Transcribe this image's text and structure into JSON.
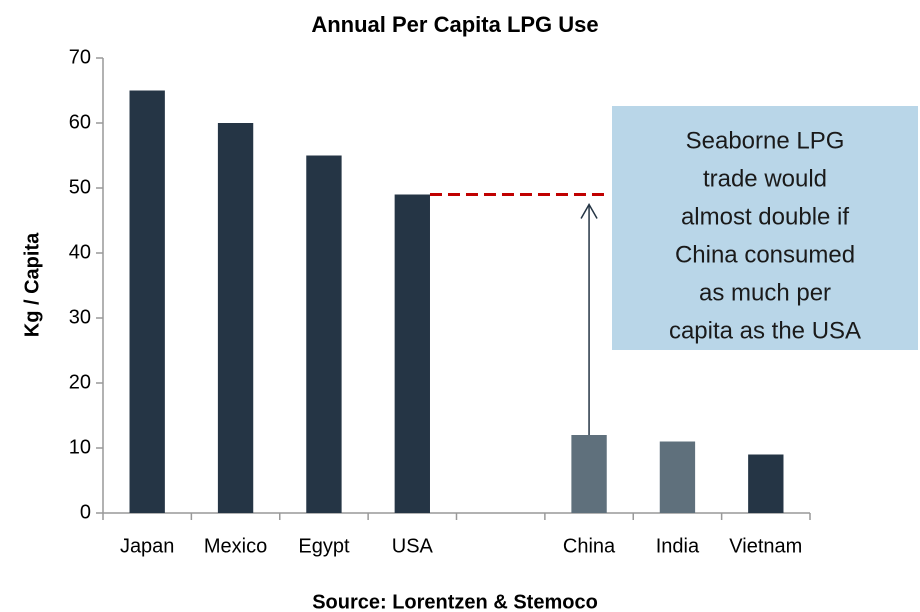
{
  "chart_data": {
    "type": "bar",
    "title": "Annual Per Capita LPG Use",
    "y_label": "Kg / Capita",
    "categories": [
      "Japan",
      "Mexico",
      "Egypt",
      "USA",
      null,
      "China",
      "India",
      "Vietnam"
    ],
    "values": [
      65,
      60,
      55,
      49,
      null,
      12,
      11,
      9
    ],
    "colors": [
      "#253545",
      "#253545",
      "#253545",
      "#253545",
      null,
      "#5f707c",
      "#5f707c",
      "#253545"
    ],
    "ylim": [
      0,
      70
    ],
    "yticks": [
      0,
      10,
      20,
      30,
      40,
      50,
      60,
      70
    ],
    "grid": false,
    "annotation": [
      "Seaborne LPG",
      "trade would",
      "almost double if",
      "China consumed",
      "as much per",
      "capita as the USA"
    ],
    "source": "Source: Lorentzen & Stemoco"
  }
}
